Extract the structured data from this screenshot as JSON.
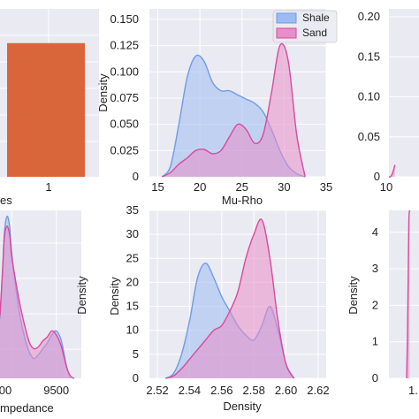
{
  "colors": {
    "shale_fill": "#9cbbf0",
    "shale_line": "#6f9be6",
    "sand_fill": "#e88ec8",
    "sand_line": "#d84a9c",
    "bar": "#d9663a",
    "panel_bg": "#eaeaf2",
    "grid": "#ffffff"
  },
  "chart_data": [
    {
      "panel": "top-left",
      "type": "bar",
      "categories": [
        "1"
      ],
      "values": [
        1
      ],
      "xlabel": "es",
      "ylim": [
        0,
        1.15
      ]
    },
    {
      "panel": "top-middle",
      "type": "area",
      "xlabel": "Mu-Rho",
      "ylabel": "Density",
      "xlim": [
        14,
        35
      ],
      "ylim": [
        0,
        0.16
      ],
      "xticks": [
        "15",
        "20",
        "25",
        "30",
        "35"
      ],
      "yticks": [
        "0",
        "0.025",
        "0.050",
        "0.075",
        "0.100",
        "0.125",
        "0.150"
      ],
      "legend": {
        "placement": "top-right",
        "entries": [
          "Shale",
          "Sand"
        ]
      },
      "grid": true,
      "series": [
        {
          "name": "Shale",
          "x": [
            15.5,
            16.5,
            17.5,
            18.5,
            19.5,
            20.5,
            21.5,
            22.5,
            23.5,
            24.5,
            25.5,
            26.5,
            27.5,
            28.5,
            29.5,
            30.5,
            31.5,
            32.5
          ],
          "y": [
            0,
            0.01,
            0.05,
            0.095,
            0.115,
            0.11,
            0.09,
            0.082,
            0.082,
            0.078,
            0.074,
            0.07,
            0.062,
            0.045,
            0.025,
            0.01,
            0.003,
            0
          ]
        },
        {
          "name": "Sand",
          "x": [
            15.5,
            16.5,
            17.5,
            18.5,
            19.5,
            20.5,
            21.5,
            22.5,
            23.5,
            24.5,
            25.5,
            26.5,
            27.5,
            28.5,
            29.5,
            30.5,
            31.5,
            32.5
          ],
          "y": [
            0,
            0.004,
            0.012,
            0.018,
            0.025,
            0.026,
            0.022,
            0.025,
            0.038,
            0.05,
            0.045,
            0.032,
            0.04,
            0.08,
            0.125,
            0.11,
            0.04,
            0
          ]
        }
      ]
    },
    {
      "panel": "top-right",
      "type": "area",
      "xticks": [
        "10"
      ],
      "yticks": [
        "0",
        "0.05",
        "0.10",
        "0.15",
        "0.20"
      ],
      "xlim": [
        10,
        30
      ],
      "ylim": [
        0,
        0.21
      ],
      "grid": true,
      "series": [
        {
          "name": "Sand",
          "x": [
            10,
            11,
            12,
            13,
            14
          ],
          "y": [
            0,
            0,
            0.003,
            0.008,
            0.015
          ]
        }
      ]
    },
    {
      "panel": "bottom-left",
      "type": "area",
      "xlabel": "mpedance",
      "ylabel": "Density",
      "xticks": [
        "00",
        "9500"
      ],
      "xlim": [
        8870,
        9780
      ],
      "grid": true,
      "series": [
        {
          "name": "Shale",
          "x": [
            8870,
            8900,
            8920,
            8950,
            8980,
            9000,
            9050,
            9100,
            9150,
            9200,
            9250,
            9300,
            9350,
            9400,
            9450,
            9500,
            9550,
            9580,
            9620,
            9660,
            9700
          ],
          "y": [
            0.3,
            0.55,
            0.74,
            0.82,
            0.76,
            0.64,
            0.45,
            0.3,
            0.2,
            0.13,
            0.1,
            0.12,
            0.15,
            0.18,
            0.22,
            0.24,
            0.2,
            0.14,
            0.05,
            0.01,
            0
          ]
        },
        {
          "name": "Sand",
          "x": [
            8870,
            8900,
            8920,
            8950,
            8980,
            9000,
            9050,
            9100,
            9150,
            9200,
            9250,
            9300,
            9350,
            9400,
            9450,
            9500,
            9550,
            9580,
            9620,
            9660,
            9700
          ],
          "y": [
            0.32,
            0.56,
            0.72,
            0.77,
            0.72,
            0.62,
            0.48,
            0.36,
            0.26,
            0.18,
            0.15,
            0.16,
            0.19,
            0.21,
            0.24,
            0.22,
            0.17,
            0.12,
            0.05,
            0.01,
            0
          ]
        }
      ]
    },
    {
      "panel": "bottom-middle",
      "type": "area",
      "xlabel": "Density",
      "ylabel": "Density",
      "xlim": [
        2.515,
        2.625
      ],
      "ylim": [
        0,
        35
      ],
      "xticks": [
        "2.52",
        "2.54",
        "2.56",
        "2.58",
        "2.60",
        "2.62"
      ],
      "yticks": [
        "0",
        "5",
        "10",
        "15",
        "20",
        "25",
        "30",
        "35"
      ],
      "grid": true,
      "series": [
        {
          "name": "Shale",
          "x": [
            2.525,
            2.53,
            2.535,
            2.54,
            2.545,
            2.55,
            2.555,
            2.56,
            2.565,
            2.57,
            2.575,
            2.58,
            2.585,
            2.59,
            2.595,
            2.6,
            2.605
          ],
          "y": [
            0,
            1,
            5,
            12,
            21,
            24,
            21,
            17,
            14,
            11,
            9,
            8,
            11,
            15,
            10,
            3,
            0
          ]
        },
        {
          "name": "Sand",
          "x": [
            2.525,
            2.53,
            2.535,
            2.54,
            2.545,
            2.55,
            2.555,
            2.56,
            2.565,
            2.57,
            2.575,
            2.58,
            2.585,
            2.59,
            2.595,
            2.6,
            2.605
          ],
          "y": [
            0,
            0.5,
            2,
            4,
            6,
            8,
            10,
            11,
            14,
            18,
            25,
            30,
            33,
            25,
            12,
            3,
            0
          ]
        }
      ]
    },
    {
      "panel": "bottom-right",
      "type": "area",
      "xticks": [
        "1."
      ],
      "yticks": [
        "0",
        "1",
        "2",
        "3",
        "4"
      ],
      "ylim": [
        0,
        4.6
      ],
      "grid": true,
      "series": [
        {
          "name": "Sand",
          "x": [
            0,
            1,
            2,
            3,
            4
          ],
          "y": [
            0,
            1.0,
            2.6,
            4.3,
            4.6
          ]
        }
      ]
    }
  ]
}
